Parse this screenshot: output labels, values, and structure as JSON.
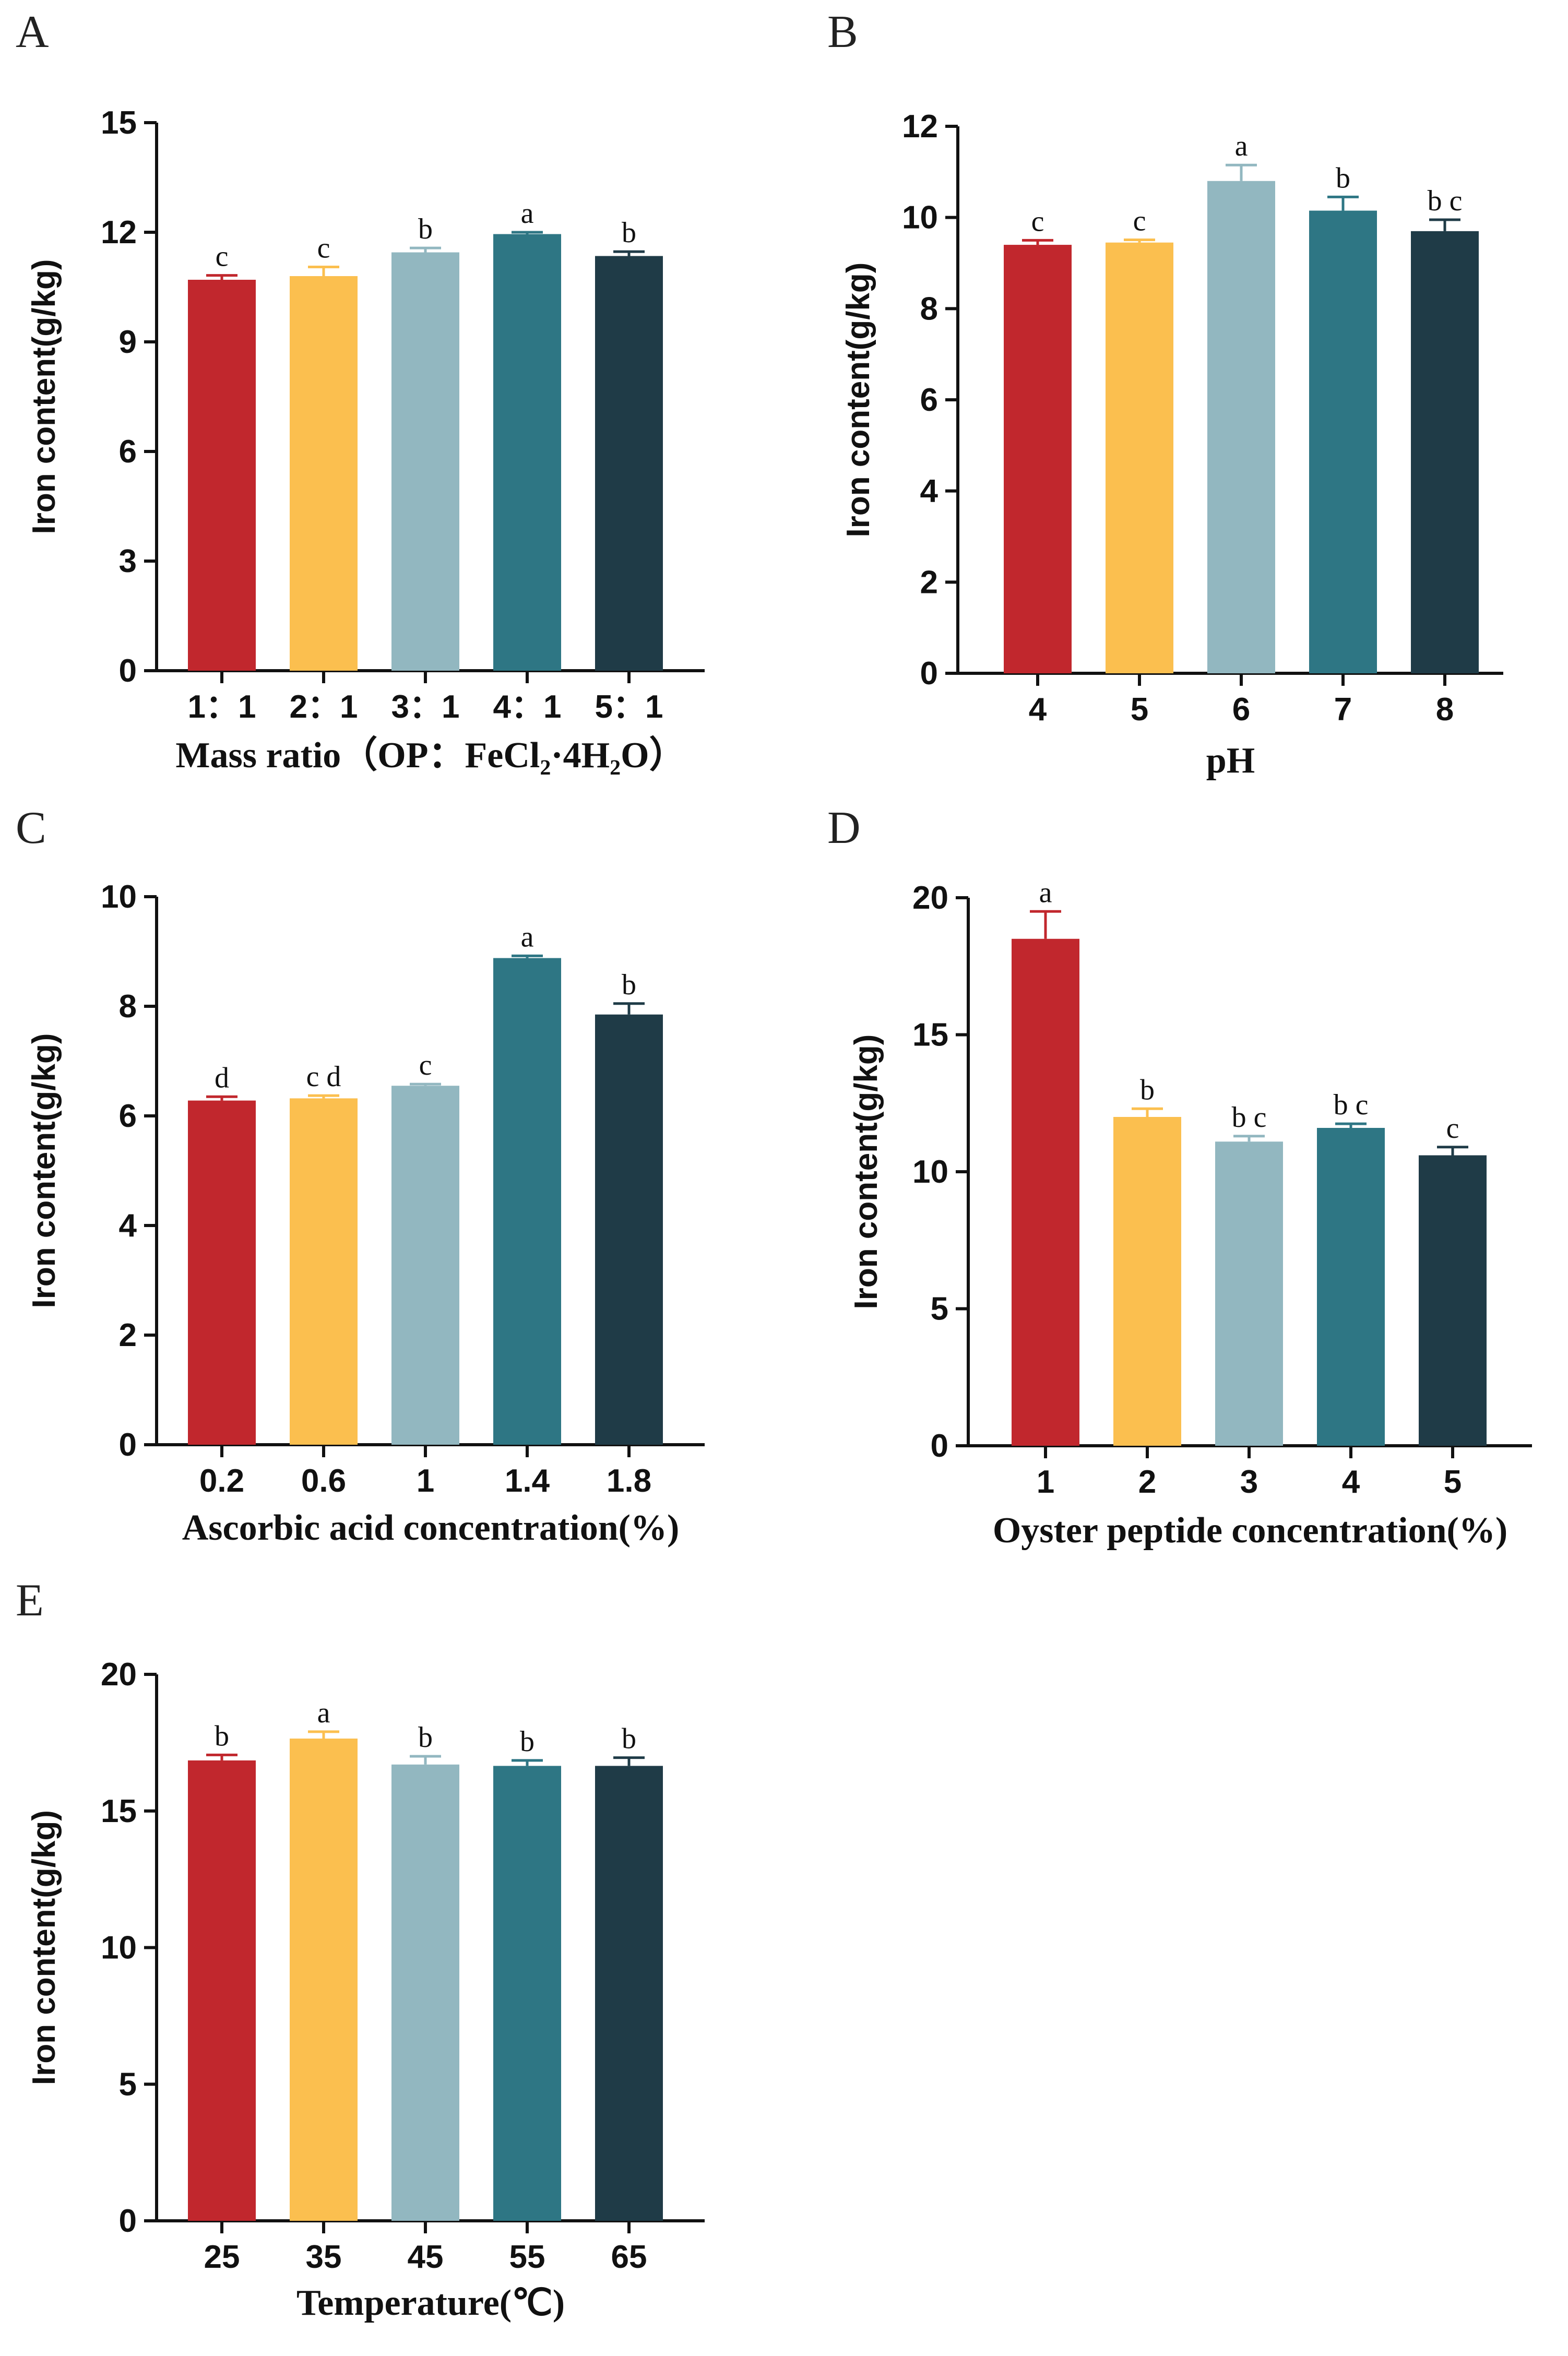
{
  "colors": [
    "#c1272d",
    "#fbbf4f",
    "#92b7c0",
    "#2e7684",
    "#1f3b47"
  ],
  "chart_data": [
    {
      "panel": "A",
      "type": "bar",
      "categories": [
        "1：1",
        "2：1",
        "3：1",
        "4：1",
        "5：1"
      ],
      "values": [
        10.7,
        10.8,
        11.45,
        11.95,
        11.35
      ],
      "errors": [
        0.12,
        0.25,
        0.12,
        0.05,
        0.12
      ],
      "significance": [
        "c",
        "c",
        "b",
        "a",
        "b"
      ],
      "xlabel": "Mass ratio（OP：FeCl₂·4H₂O）",
      "ylabel": "Iron content(g/kg)",
      "ylim": [
        0,
        15
      ],
      "yticks": [
        "0",
        "3",
        "6",
        "9",
        "12",
        "15"
      ]
    },
    {
      "panel": "B",
      "type": "bar",
      "categories": [
        "4",
        "5",
        "6",
        "7",
        "8"
      ],
      "values": [
        9.4,
        9.45,
        10.8,
        10.15,
        9.7
      ],
      "errors": [
        0.1,
        0.06,
        0.35,
        0.3,
        0.25
      ],
      "significance": [
        "c",
        "c",
        "a",
        "b",
        "b c"
      ],
      "xlabel": "pH",
      "ylabel": "Iron content(g/kg)",
      "ylim": [
        0,
        12
      ],
      "yticks": [
        "0",
        "2",
        "4",
        "6",
        "8",
        "10",
        "12"
      ]
    },
    {
      "panel": "C",
      "type": "bar",
      "categories": [
        "0.2",
        "0.6",
        "1",
        "1.4",
        "1.8"
      ],
      "values": [
        6.28,
        6.32,
        6.55,
        8.88,
        7.85
      ],
      "errors": [
        0.07,
        0.05,
        0.03,
        0.04,
        0.2
      ],
      "significance": [
        "d",
        "c d",
        "c",
        "a",
        "b"
      ],
      "xlabel": "Ascorbic acid concentration(%)",
      "ylabel": "Iron content(g/kg)",
      "ylim": [
        0,
        10
      ],
      "yticks": [
        "0",
        "2",
        "4",
        "6",
        "8",
        "10"
      ]
    },
    {
      "panel": "D",
      "type": "bar",
      "categories": [
        "1",
        "2",
        "3",
        "4",
        "5"
      ],
      "values": [
        18.5,
        12.0,
        11.1,
        11.6,
        10.6
      ],
      "errors": [
        1.0,
        0.3,
        0.2,
        0.15,
        0.3
      ],
      "significance": [
        "a",
        "b",
        "b c",
        "b c",
        "c"
      ],
      "xlabel": "Oyster peptide concentration(%)",
      "ylabel": "Iron content(g/kg)",
      "ylim": [
        0,
        20
      ],
      "yticks": [
        "0",
        "5",
        "10",
        "15",
        "20"
      ]
    },
    {
      "panel": "E",
      "type": "bar",
      "categories": [
        "25",
        "35",
        "45",
        "55",
        "65"
      ],
      "values": [
        16.85,
        17.65,
        16.7,
        16.65,
        16.65
      ],
      "errors": [
        0.2,
        0.25,
        0.3,
        0.2,
        0.3
      ],
      "significance": [
        "b",
        "a",
        "b",
        "b",
        "b"
      ],
      "xlabel": "Temperature(℃)",
      "ylabel": "Iron content(g/kg)",
      "ylim": [
        0,
        20
      ],
      "yticks": [
        "0",
        "5",
        "10",
        "15",
        "20"
      ]
    }
  ]
}
